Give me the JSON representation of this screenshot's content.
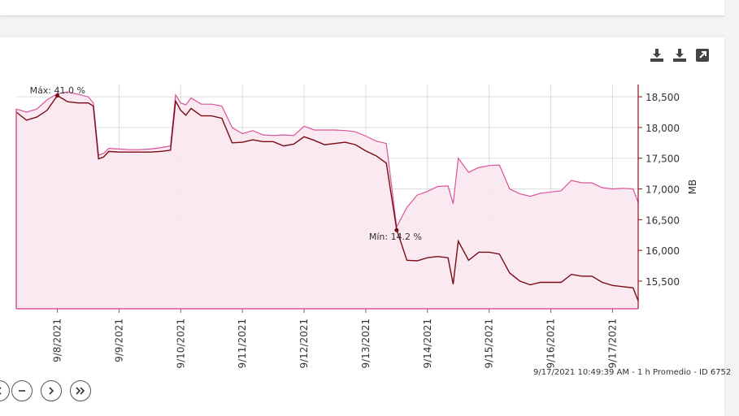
{
  "chart_data": {
    "type": "area",
    "x_ticks": [
      "9/8/2021",
      "9/9/2021",
      "9/10/2021",
      "9/11/2021",
      "9/12/2021",
      "9/13/2021",
      "9/14/2021",
      "9/15/2021",
      "9/16/2021",
      "9/17/2021"
    ],
    "y_ticks": [
      "15,500",
      "16,000",
      "16,500",
      "17,000",
      "17,500",
      "18,000",
      "18,500"
    ],
    "ylabel": "MB",
    "ylim": [
      15050,
      18700
    ],
    "xlim": [
      "9/7/2021 08:00",
      "9/17/2021 10:00"
    ],
    "grid": true,
    "colors": {
      "upper": "#d9539a",
      "fill": "#fbe7f0",
      "lower": "#7a0a14",
      "grid": "#dddddd",
      "axis": "#8a1020"
    },
    "annotations": [
      {
        "text": "Máx: 41.0 %",
        "x": "9/8/2021 00:00",
        "y": 18520
      },
      {
        "text": "Mín: 14.2 %",
        "x": "9/13/2021 12:00",
        "y": 16330
      }
    ],
    "series": [
      {
        "values": [
          [
            "9/7/2021 08:00",
            18300
          ],
          [
            "9/7/2021 12:00",
            18250
          ],
          [
            "9/7/2021 16:00",
            18300
          ],
          [
            "9/7/2021 20:00",
            18450
          ],
          [
            "9/8/2021 00:00",
            18550
          ],
          [
            "9/8/2021 04:00",
            18580
          ],
          [
            "9/8/2021 08:00",
            18540
          ],
          [
            "9/8/2021 12:00",
            18500
          ],
          [
            "9/8/2021 14:00",
            18400
          ],
          [
            "9/8/2021 16:00",
            17550
          ],
          [
            "9/8/2021 18:00",
            17580
          ],
          [
            "9/8/2021 20:00",
            17660
          ],
          [
            "9/9/2021 00:00",
            17650
          ],
          [
            "9/9/2021 04:00",
            17640
          ],
          [
            "9/9/2021 08:00",
            17640
          ],
          [
            "9/9/2021 12:00",
            17650
          ],
          [
            "9/9/2021 16:00",
            17670
          ],
          [
            "9/9/2021 20:00",
            17700
          ],
          [
            "9/9/2021 22:00",
            18530
          ],
          [
            "9/10/2021 00:00",
            18400
          ],
          [
            "9/10/2021 02:00",
            18370
          ],
          [
            "9/10/2021 04:00",
            18480
          ],
          [
            "9/10/2021 08:00",
            18380
          ],
          [
            "9/10/2021 12:00",
            18380
          ],
          [
            "9/10/2021 16:00",
            18350
          ],
          [
            "9/10/2021 20:00",
            18000
          ],
          [
            "9/11/2021 00:00",
            17900
          ],
          [
            "9/11/2021 04:00",
            17950
          ],
          [
            "9/11/2021 08:00",
            17880
          ],
          [
            "9/11/2021 12:00",
            17870
          ],
          [
            "9/11/2021 16:00",
            17880
          ],
          [
            "9/11/2021 20:00",
            17870
          ],
          [
            "9/12/2021 00:00",
            18020
          ],
          [
            "9/12/2021 04:00",
            17960
          ],
          [
            "9/12/2021 08:00",
            17960
          ],
          [
            "9/12/2021 12:00",
            17960
          ],
          [
            "9/12/2021 16:00",
            17950
          ],
          [
            "9/12/2021 20:00",
            17930
          ],
          [
            "9/13/2021 00:00",
            17860
          ],
          [
            "9/13/2021 04:00",
            17780
          ],
          [
            "9/13/2021 08:00",
            17740
          ],
          [
            "9/13/2021 12:00",
            16380
          ],
          [
            "9/13/2021 16:00",
            16700
          ],
          [
            "9/13/2021 20:00",
            16900
          ],
          [
            "9/14/2021 00:00",
            16960
          ],
          [
            "9/14/2021 04:00",
            17040
          ],
          [
            "9/14/2021 08:00",
            17050
          ],
          [
            "9/14/2021 10:00",
            16760
          ],
          [
            "9/14/2021 12:00",
            17500
          ],
          [
            "9/14/2021 16:00",
            17270
          ],
          [
            "9/14/2021 20:00",
            17350
          ],
          [
            "9/15/2021 00:00",
            17380
          ],
          [
            "9/15/2021 04:00",
            17390
          ],
          [
            "9/15/2021 08:00",
            17000
          ],
          [
            "9/15/2021 12:00",
            16920
          ],
          [
            "9/15/2021 16:00",
            16880
          ],
          [
            "9/15/2021 20:00",
            16930
          ],
          [
            "9/16/2021 00:00",
            16950
          ],
          [
            "9/16/2021 04:00",
            16970
          ],
          [
            "9/16/2021 08:00",
            17140
          ],
          [
            "9/16/2021 12:00",
            17100
          ],
          [
            "9/16/2021 16:00",
            17100
          ],
          [
            "9/16/2021 20:00",
            17020
          ],
          [
            "9/17/2021 00:00",
            17000
          ],
          [
            "9/17/2021 04:00",
            17010
          ],
          [
            "9/17/2021 08:00",
            17000
          ],
          [
            "9/17/2021 10:00",
            16780
          ]
        ]
      },
      {
        "values": [
          [
            "9/7/2021 08:00",
            18250
          ],
          [
            "9/7/2021 12:00",
            18120
          ],
          [
            "9/7/2021 16:00",
            18170
          ],
          [
            "9/7/2021 20:00",
            18280
          ],
          [
            "9/8/2021 00:00",
            18520
          ],
          [
            "9/8/2021 04:00",
            18420
          ],
          [
            "9/8/2021 08:00",
            18400
          ],
          [
            "9/8/2021 12:00",
            18400
          ],
          [
            "9/8/2021 14:00",
            18350
          ],
          [
            "9/8/2021 16:00",
            17490
          ],
          [
            "9/8/2021 18:00",
            17520
          ],
          [
            "9/8/2021 20:00",
            17610
          ],
          [
            "9/9/2021 00:00",
            17600
          ],
          [
            "9/9/2021 04:00",
            17600
          ],
          [
            "9/9/2021 08:00",
            17600
          ],
          [
            "9/9/2021 12:00",
            17600
          ],
          [
            "9/9/2021 16:00",
            17610
          ],
          [
            "9/9/2021 20:00",
            17630
          ],
          [
            "9/9/2021 22:00",
            18430
          ],
          [
            "9/10/2021 00:00",
            18280
          ],
          [
            "9/10/2021 02:00",
            18200
          ],
          [
            "9/10/2021 04:00",
            18310
          ],
          [
            "9/10/2021 08:00",
            18190
          ],
          [
            "9/10/2021 12:00",
            18190
          ],
          [
            "9/10/2021 16:00",
            18150
          ],
          [
            "9/10/2021 20:00",
            17750
          ],
          [
            "9/11/2021 00:00",
            17760
          ],
          [
            "9/11/2021 04:00",
            17800
          ],
          [
            "9/11/2021 08:00",
            17770
          ],
          [
            "9/11/2021 12:00",
            17770
          ],
          [
            "9/11/2021 16:00",
            17700
          ],
          [
            "9/11/2021 20:00",
            17730
          ],
          [
            "9/12/2021 00:00",
            17850
          ],
          [
            "9/12/2021 04:00",
            17790
          ],
          [
            "9/12/2021 08:00",
            17720
          ],
          [
            "9/12/2021 12:00",
            17740
          ],
          [
            "9/12/2021 16:00",
            17760
          ],
          [
            "9/12/2021 20:00",
            17720
          ],
          [
            "9/13/2021 00:00",
            17620
          ],
          [
            "9/13/2021 04:00",
            17540
          ],
          [
            "9/13/2021 08:00",
            17420
          ],
          [
            "9/13/2021 12:00",
            16340
          ],
          [
            "9/13/2021 16:00",
            15840
          ],
          [
            "9/13/2021 20:00",
            15830
          ],
          [
            "9/14/2021 00:00",
            15880
          ],
          [
            "9/14/2021 04:00",
            15900
          ],
          [
            "9/14/2021 08:00",
            15880
          ],
          [
            "9/14/2021 10:00",
            15450
          ],
          [
            "9/14/2021 12:00",
            16150
          ],
          [
            "9/14/2021 16:00",
            15840
          ],
          [
            "9/14/2021 20:00",
            15970
          ],
          [
            "9/15/2021 00:00",
            15970
          ],
          [
            "9/15/2021 04:00",
            15940
          ],
          [
            "9/15/2021 08:00",
            15630
          ],
          [
            "9/15/2021 12:00",
            15500
          ],
          [
            "9/15/2021 16:00",
            15440
          ],
          [
            "9/15/2021 20:00",
            15480
          ],
          [
            "9/16/2021 00:00",
            15480
          ],
          [
            "9/16/2021 04:00",
            15480
          ],
          [
            "9/16/2021 08:00",
            15610
          ],
          [
            "9/16/2021 12:00",
            15580
          ],
          [
            "9/16/2021 16:00",
            15580
          ],
          [
            "9/16/2021 20:00",
            15480
          ],
          [
            "9/17/2021 00:00",
            15430
          ],
          [
            "9/17/2021 04:00",
            15410
          ],
          [
            "9/17/2021 08:00",
            15390
          ],
          [
            "9/17/2021 10:00",
            15180
          ]
        ]
      }
    ]
  },
  "toolbar": {
    "icons": [
      "download-icon",
      "download-icon",
      "expand-icon"
    ]
  },
  "footer": {
    "info": "9/17/2021 10:49:39 AM - 1 h Promedio - ID 6752"
  },
  "pager": {
    "icons": [
      "previous-icon",
      "zoom-out-icon",
      "next-icon",
      "last-icon"
    ]
  }
}
